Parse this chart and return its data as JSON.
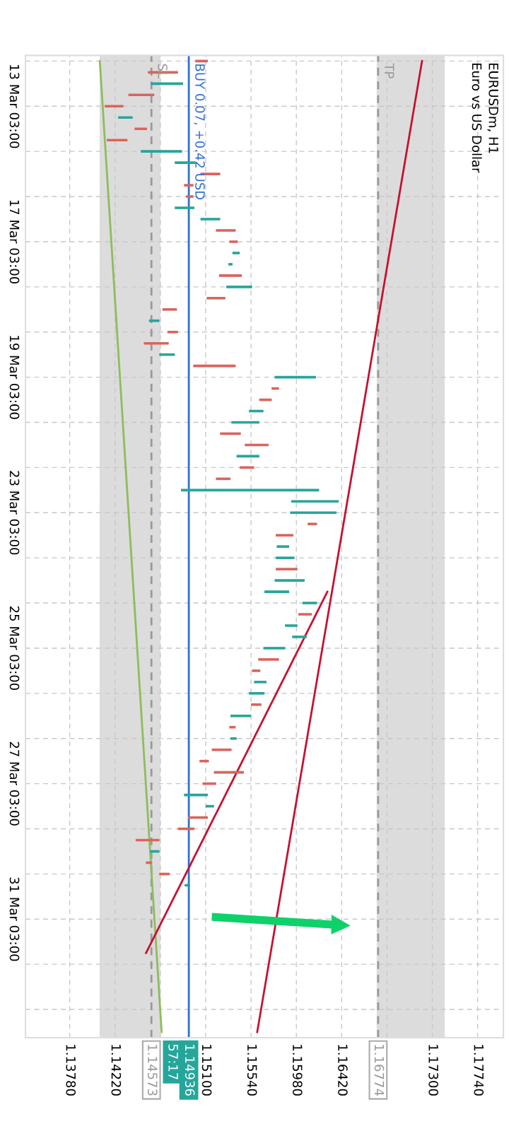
{
  "chart_data": {
    "type": "candlestick",
    "title": "EURUSDm, H1",
    "subtitle": "Euro vs US Dollar",
    "orientation": "horizontal",
    "categories": [
      null,
      null,
      null,
      null,
      "13 Mar 03:00",
      null,
      null,
      null,
      null,
      null,
      null,
      null,
      null,
      null,
      null,
      null,
      "17 Mar 03:00",
      null,
      null,
      null,
      null,
      null,
      null,
      null,
      null,
      null,
      null,
      null,
      "19 Mar 03:00",
      null,
      null,
      null,
      null,
      null,
      null,
      null,
      null,
      null,
      null,
      null,
      "23 Mar 03:00",
      null,
      null,
      null,
      null,
      null,
      null,
      null,
      null,
      null,
      null,
      null,
      "25 Mar 03:00",
      null,
      null,
      null,
      null,
      null,
      null,
      null,
      null,
      null,
      null,
      null,
      "27 Mar 03:00",
      null,
      null,
      null,
      null,
      null,
      null,
      null,
      null,
      null,
      null,
      null,
      "31 Mar 03:00",
      null,
      null,
      null,
      null,
      null,
      null,
      null,
      null,
      null,
      null
    ],
    "ohlc": [
      [
        1.1512,
        1.1512,
        1.15,
        1.15
      ],
      [
        1.1483,
        1.1483,
        1.1454,
        1.1454
      ],
      [
        1.1457,
        1.1488,
        1.1457,
        1.1488
      ],
      [
        1.146,
        1.146,
        1.1435,
        1.1435
      ],
      [
        1.143,
        1.143,
        1.1412,
        1.1412
      ],
      [
        1.1425,
        1.1439,
        1.1425,
        1.1439
      ],
      [
        1.1453,
        1.1453,
        1.1441,
        1.1441
      ],
      [
        1.1434,
        1.1434,
        1.1414,
        1.1414
      ],
      [
        1.1447,
        1.1487,
        1.1447,
        1.1487
      ],
      [
        1.148,
        1.15,
        1.148,
        1.15
      ],
      [
        1.1524,
        1.1524,
        1.1505,
        1.1505
      ],
      [
        1.1498,
        1.1498,
        1.1489,
        1.1489
      ],
      [
        1.1498,
        1.1498,
        1.1491,
        1.1491
      ],
      [
        1.148,
        1.1499,
        1.148,
        1.1499
      ],
      [
        1.1505,
        1.1524,
        1.1505,
        1.1524
      ],
      [
        1.1539,
        1.1539,
        1.152,
        1.152
      ],
      [
        1.1541,
        1.1541,
        1.1533,
        1.1533
      ],
      [
        1.1536,
        1.1543,
        1.1536,
        1.1543
      ],
      [
        1.1532,
        1.1536,
        1.1532,
        1.1536
      ],
      [
        1.1545,
        1.1545,
        1.1523,
        1.1523
      ],
      [
        1.153,
        1.1555,
        1.153,
        1.1555
      ],
      [
        1.1529,
        1.1529,
        1.1511,
        1.1511
      ],
      [
        1.1482,
        1.1482,
        1.1468,
        1.1468
      ],
      [
        1.1455,
        1.1465,
        1.1455,
        1.1465
      ],
      [
        1.1483,
        1.1483,
        1.1473,
        1.1473
      ],
      [
        1.1474,
        1.1474,
        1.145,
        1.145
      ],
      [
        1.1465,
        1.148,
        1.1465,
        1.148
      ],
      [
        1.1539,
        1.1539,
        1.1498,
        1.1498
      ],
      [
        1.1577,
        1.1617,
        1.1577,
        1.1617
      ],
      [
        1.1581,
        1.1581,
        1.1574,
        1.1574
      ],
      [
        1.1574,
        1.1574,
        1.1562,
        1.1562
      ],
      [
        1.1552,
        1.1566,
        1.1552,
        1.1566
      ],
      [
        1.1535,
        1.1562,
        1.1535,
        1.1562
      ],
      [
        1.1544,
        1.1544,
        1.1524,
        1.1524
      ],
      [
        1.1571,
        1.1571,
        1.1548,
        1.1548
      ],
      [
        1.154,
        1.1562,
        1.154,
        1.1562
      ],
      [
        1.1557,
        1.1557,
        1.1543,
        1.1543
      ],
      [
        1.1534,
        1.1534,
        1.152,
        1.152
      ],
      [
        1.1486,
        1.162,
        1.1486,
        1.162
      ],
      [
        1.1593,
        1.1639,
        1.1593,
        1.1639
      ],
      [
        1.1592,
        1.1637,
        1.1592,
        1.1637
      ],
      [
        1.1618,
        1.1618,
        1.1609,
        1.1609
      ],
      [
        1.1595,
        1.1595,
        1.1578,
        1.1578
      ],
      [
        1.1579,
        1.1591,
        1.1579,
        1.1591
      ],
      [
        1.1578,
        1.1596,
        1.1578,
        1.1596
      ],
      [
        1.1599,
        1.1599,
        1.1578,
        1.1578
      ],
      [
        1.1577,
        1.1606,
        1.1577,
        1.1606
      ],
      [
        1.1567,
        1.1591,
        1.1567,
        1.1591
      ],
      [
        1.1604,
        1.1618,
        1.1604,
        1.1618
      ],
      [
        1.1613,
        1.1613,
        1.16,
        1.16
      ],
      [
        1.1587,
        1.1599,
        1.1587,
        1.1599
      ],
      [
        1.1594,
        1.1608,
        1.1594,
        1.1608
      ],
      [
        1.1566,
        1.1587,
        1.1566,
        1.1587
      ],
      [
        1.1581,
        1.1581,
        1.1561,
        1.1561
      ],
      [
        1.1563,
        1.1563,
        1.1555,
        1.1555
      ],
      [
        1.1557,
        1.1569,
        1.1557,
        1.1569
      ],
      [
        1.1552,
        1.1567,
        1.1552,
        1.1567
      ],
      [
        1.1564,
        1.1564,
        1.1554,
        1.1554
      ],
      [
        1.1534,
        1.1554,
        1.1534,
        1.1554
      ],
      [
        1.1539,
        1.1539,
        1.1533,
        1.1533
      ],
      [
        1.1534,
        1.154,
        1.1534,
        1.154
      ],
      [
        1.1535,
        1.1535,
        1.1516,
        1.1516
      ],
      [
        1.1513,
        1.1513,
        1.1504,
        1.1504
      ],
      [
        1.1547,
        1.1547,
        1.1518,
        1.1518
      ],
      [
        1.152,
        1.152,
        1.1507,
        1.1507
      ],
      [
        1.1489,
        1.1512,
        1.1489,
        1.1512
      ],
      [
        1.151,
        1.1518,
        1.151,
        1.1518
      ],
      [
        1.1512,
        1.1512,
        1.1493,
        1.1493
      ],
      [
        1.1499,
        1.1499,
        1.1483,
        1.1483
      ],
      [
        1.1465,
        1.1465,
        1.1442,
        1.1442
      ],
      [
        1.1456,
        1.1465,
        1.1456,
        1.1465
      ],
      [
        1.1458,
        1.1458,
        1.1452,
        1.1452
      ],
      [
        1.1475,
        1.1475,
        1.1465,
        1.1465
      ],
      [
        1.149,
        1.1495,
        1.1489,
        1.14936
      ],
      null,
      null,
      null,
      null,
      null,
      null,
      null,
      null,
      null,
      null,
      null,
      null,
      null
    ],
    "series": [
      {
        "type": "line",
        "color": "#8fbc5a",
        "values": [
          1.14072,
          null,
          null,
          null,
          null,
          null,
          null,
          null,
          null,
          null,
          null,
          null,
          null,
          null,
          null,
          null,
          null,
          null,
          null,
          null,
          null,
          null,
          null,
          null,
          null,
          null,
          null,
          null,
          null,
          null,
          null,
          null,
          null,
          null,
          null,
          null,
          null,
          null,
          null,
          null,
          null,
          null,
          null,
          null,
          null,
          null,
          null,
          null,
          null,
          null,
          null,
          null,
          null,
          null,
          null,
          null,
          null,
          null,
          null,
          null,
          null,
          null,
          null,
          null,
          null,
          null,
          null,
          null,
          null,
          null,
          null,
          null,
          null,
          null,
          null,
          null,
          null,
          null,
          null,
          null,
          null,
          null,
          null,
          null,
          null,
          null,
          1.14672
        ]
      },
      {
        "type": "line",
        "color": "#c8102e",
        "values": [
          1.172,
          null,
          null,
          null,
          null,
          null,
          null,
          null,
          null,
          null,
          null,
          null,
          null,
          null,
          null,
          null,
          null,
          null,
          null,
          null,
          null,
          null,
          null,
          null,
          null,
          null,
          null,
          null,
          null,
          null,
          null,
          null,
          null,
          null,
          null,
          null,
          null,
          null,
          null,
          null,
          null,
          null,
          null,
          null,
          null,
          null,
          null,
          null,
          null,
          null,
          null,
          null,
          null,
          null,
          null,
          null,
          null,
          null,
          null,
          null,
          null,
          null,
          null,
          null,
          null,
          null,
          null,
          null,
          null,
          null,
          null,
          null,
          null,
          null,
          null,
          null,
          null,
          null,
          null,
          null,
          null,
          null,
          null,
          null,
          null,
          null,
          1.156
        ]
      },
      {
        "type": "line",
        "color": "#c8102e",
        "values": [
          null,
          null,
          null,
          null,
          null,
          null,
          null,
          null,
          null,
          null,
          null,
          null,
          null,
          null,
          null,
          null,
          null,
          null,
          null,
          null,
          null,
          null,
          null,
          null,
          null,
          null,
          null,
          null,
          null,
          null,
          null,
          null,
          null,
          null,
          null,
          null,
          null,
          null,
          null,
          null,
          null,
          null,
          null,
          null,
          null,
          null,
          null,
          1.16281,
          null,
          null,
          null,
          null,
          null,
          null,
          null,
          null,
          null,
          null,
          null,
          null,
          null,
          null,
          null,
          null,
          null,
          null,
          null,
          null,
          null,
          null,
          null,
          null,
          null,
          null,
          null,
          null,
          null,
          null,
          null,
          1.14521,
          null,
          null,
          null,
          null,
          null,
          null,
          null
        ]
      }
    ],
    "xlim": [
      1.1335,
      1.1799
    ],
    "xticks": [
      {
        "value": 1.1378,
        "label": "1.13780"
      },
      {
        "value": 1.1422,
        "label": "1.14220"
      },
      {
        "value": 1.1466,
        "label": null
      },
      {
        "value": 1.151,
        "label": "1.15100"
      },
      {
        "value": 1.1554,
        "label": "1.15540"
      },
      {
        "value": 1.1598,
        "label": "1.15980"
      },
      {
        "value": 1.1642,
        "label": "1.16420"
      },
      {
        "value": 1.1686,
        "label": null
      },
      {
        "value": 1.173,
        "label": "1.17300"
      },
      {
        "value": 1.1774,
        "label": "1.17740"
      }
    ],
    "ref_lines": [
      {
        "axis": "x",
        "value": 1.16774,
        "label": "TP",
        "color": "#999999",
        "line_style": "dashed"
      },
      {
        "axis": "x",
        "value": 1.14573,
        "label": "SL",
        "color": "#999999",
        "line_style": "dashed"
      },
      {
        "axis": "x",
        "value": 1.14936,
        "label": "BUY 0.07, +0.42 USD",
        "color": "#2f6fd0",
        "line_style": "solid"
      }
    ],
    "bands": [
      {
        "axis": "x",
        "from": 1.1407,
        "to": 1.1466,
        "color": "#dcdcdc"
      },
      {
        "axis": "x",
        "from": 1.1676,
        "to": 1.1742,
        "color": "#dcdcdc"
      }
    ],
    "annotations": [
      "1.16774",
      "1.14573",
      "1.14936",
      "57:17"
    ],
    "grid": true
  }
}
